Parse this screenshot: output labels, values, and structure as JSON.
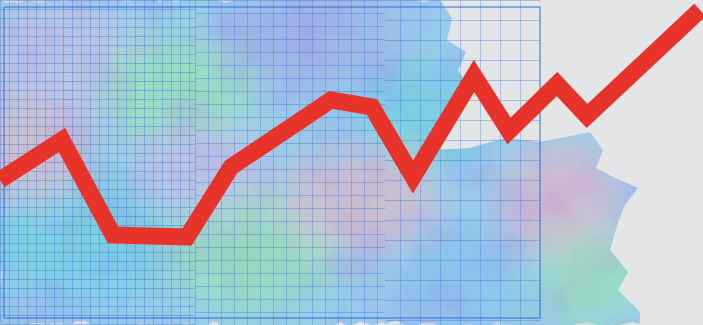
{
  "illustration": {
    "background_color": "#e4e5e7",
    "grid_color": "#2f6fd6",
    "texture_colors": [
      "#7aa6e0",
      "#5bb8d6",
      "#8fd19a",
      "#c9a3d8",
      "#e79bb2",
      "#9a8fd8"
    ],
    "trend_line_color": "#e8332a"
  }
}
